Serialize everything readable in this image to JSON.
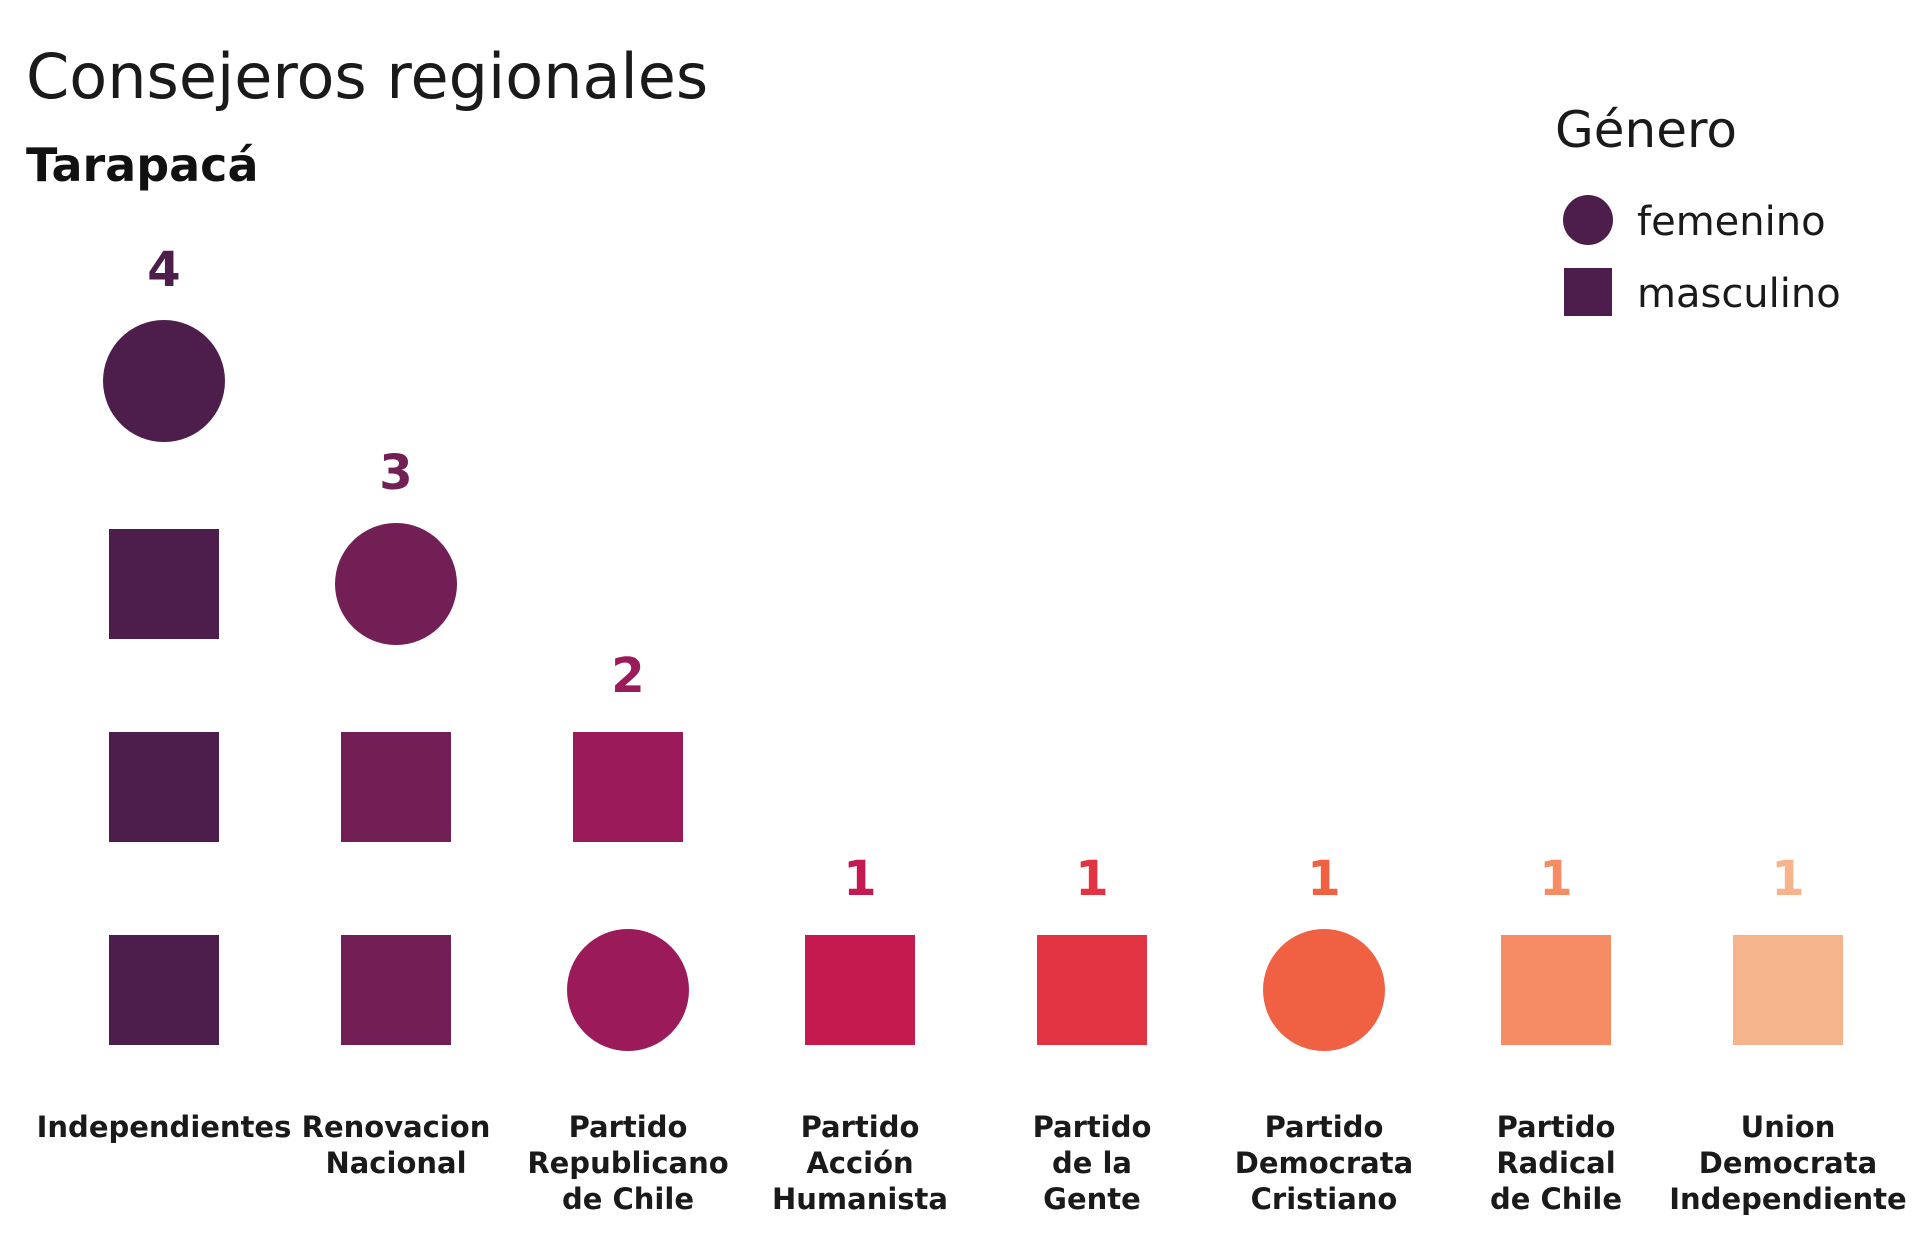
{
  "chart_data": {
    "type": "waffle",
    "title": "Consejeros regionales",
    "subtitle": "Tarapacá",
    "legend": {
      "title": "Género",
      "placement": "top-right",
      "items": [
        {
          "label": "femenino",
          "shape": "circle"
        },
        {
          "label": "masculino",
          "shape": "square"
        }
      ]
    },
    "categories": [
      {
        "label_lines": [
          "Independientes"
        ],
        "total": "4",
        "color": "#4d1e4b",
        "stack": [
          "masculino",
          "masculino",
          "masculino",
          "femenino"
        ]
      },
      {
        "label_lines": [
          "Renovacion",
          "Nacional"
        ],
        "total": "3",
        "color": "#711f55",
        "stack": [
          "masculino",
          "masculino",
          "femenino"
        ]
      },
      {
        "label_lines": [
          "Partido",
          "Republicano",
          "de Chile"
        ],
        "total": "2",
        "color": "#9b1b5a",
        "stack": [
          "femenino",
          "masculino"
        ]
      },
      {
        "label_lines": [
          "Partido",
          "Acción",
          "Humanista"
        ],
        "total": "1",
        "color": "#c41a50",
        "stack": [
          "masculino"
        ]
      },
      {
        "label_lines": [
          "Partido",
          "de la",
          "Gente"
        ],
        "total": "1",
        "color": "#e13342",
        "stack": [
          "masculino"
        ]
      },
      {
        "label_lines": [
          "Partido",
          "Democrata",
          "Cristiano"
        ],
        "total": "1",
        "color": "#f06043",
        "stack": [
          "femenino"
        ]
      },
      {
        "label_lines": [
          "Partido",
          "Radical",
          "de Chile"
        ],
        "total": "1",
        "color": "#f58c64",
        "stack": [
          "masculino"
        ]
      },
      {
        "label_lines": [
          "Union",
          "Democrata",
          "Independiente"
        ],
        "total": "1",
        "color": "#f6b48d",
        "stack": [
          "masculino"
        ]
      }
    ],
    "legend_color": "#4d1e4b"
  }
}
